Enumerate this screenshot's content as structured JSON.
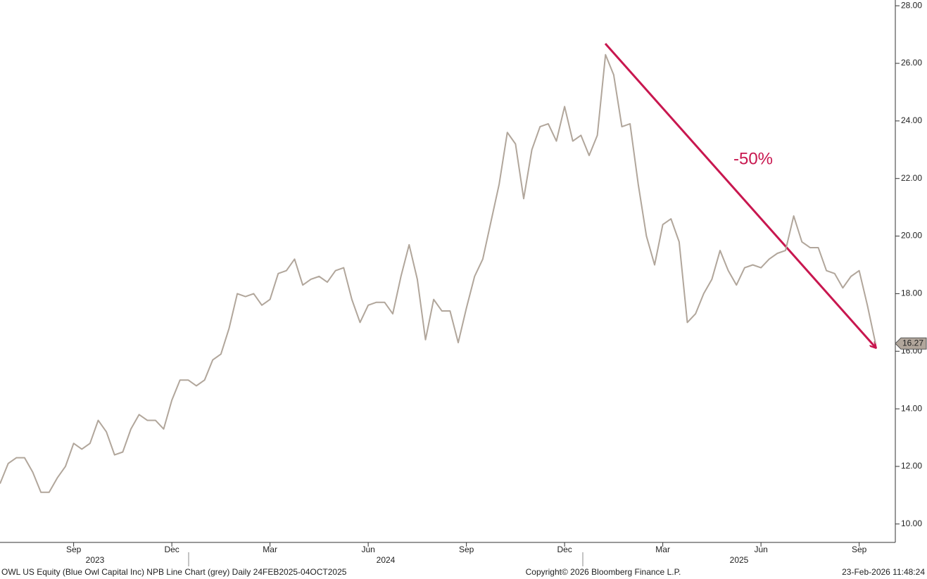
{
  "chart_data": {
    "type": "line",
    "annotation": "-50%",
    "footer_left": "OWL US Equity (Blue Owl Capital Inc) NPB Line Chart (grey) Daily 24FEB2025-04OCT2025",
    "footer_center": "Copyright© 2026 Bloomberg Finance L.P.",
    "footer_right": "23-Feb-2026 11:48:24",
    "year_labels": [
      "2023",
      "2024",
      "2025"
    ],
    "categories": [
      null,
      null,
      null,
      null,
      null,
      null,
      null,
      null,
      null,
      "Sep",
      null,
      null,
      null,
      null,
      null,
      null,
      null,
      null,
      null,
      null,
      null,
      "Dec",
      null,
      null,
      null,
      null,
      null,
      null,
      null,
      null,
      null,
      null,
      null,
      "Mar",
      null,
      null,
      null,
      null,
      null,
      null,
      null,
      null,
      null,
      null,
      null,
      "Jun",
      null,
      null,
      null,
      null,
      null,
      null,
      null,
      null,
      null,
      null,
      null,
      "Sep",
      null,
      null,
      null,
      null,
      null,
      null,
      null,
      null,
      null,
      null,
      null,
      "Dec",
      null,
      null,
      null,
      null,
      null,
      null,
      null,
      null,
      null,
      null,
      null,
      "Mar",
      null,
      null,
      null,
      null,
      null,
      null,
      null,
      null,
      null,
      null,
      null,
      "Jun",
      null,
      null,
      null,
      null,
      null,
      null,
      null,
      null,
      null,
      null,
      null,
      "Sep",
      null,
      null
    ],
    "series": [
      {
        "color": "#b1a69b",
        "values": [
          11.4,
          12.1,
          12.3,
          12.3,
          11.8,
          11.1,
          11.1,
          11.6,
          12.0,
          12.8,
          12.6,
          12.8,
          13.6,
          13.2,
          12.4,
          12.5,
          13.3,
          13.8,
          13.6,
          13.6,
          13.3,
          14.3,
          15.0,
          15.0,
          14.8,
          15.0,
          15.7,
          15.9,
          16.8,
          18.0,
          17.9,
          18.0,
          17.6,
          17.8,
          18.7,
          18.8,
          19.2,
          18.3,
          18.5,
          18.6,
          18.4,
          18.8,
          18.9,
          17.8,
          17.0,
          17.6,
          17.7,
          17.7,
          17.3,
          18.6,
          19.7,
          18.5,
          16.4,
          17.8,
          17.4,
          17.4,
          16.3,
          17.5,
          18.6,
          19.2,
          20.5,
          21.8,
          23.6,
          23.2,
          21.3,
          23.0,
          23.8,
          23.9,
          23.3,
          24.5,
          23.3,
          23.5,
          22.8,
          23.5,
          26.3,
          25.6,
          23.8,
          23.9,
          21.8,
          20.0,
          19.0,
          20.4,
          20.6,
          19.8,
          17.0,
          17.3,
          18.0,
          18.5,
          19.5,
          18.8,
          18.3,
          18.9,
          19.0,
          18.9,
          19.2,
          19.4,
          19.5,
          20.7,
          19.8,
          19.6,
          19.6,
          18.8,
          18.7,
          18.2,
          18.6,
          18.8,
          17.6,
          16.27
        ]
      }
    ],
    "ylim": [
      9.36,
      28.2
    ],
    "yticks": [
      {
        "value": 10,
        "label": "10.00"
      },
      {
        "value": 12,
        "label": "12.00"
      },
      {
        "value": 14,
        "label": "14.00"
      },
      {
        "value": 16,
        "label": "16.00"
      },
      {
        "value": 18,
        "label": "18.00"
      },
      {
        "value": 20,
        "label": "20.00"
      },
      {
        "value": 22,
        "label": "22.00"
      },
      {
        "value": 24,
        "label": "24.00"
      },
      {
        "value": 26,
        "label": "26.00"
      },
      {
        "value": 28,
        "label": "28.00"
      }
    ]
  }
}
